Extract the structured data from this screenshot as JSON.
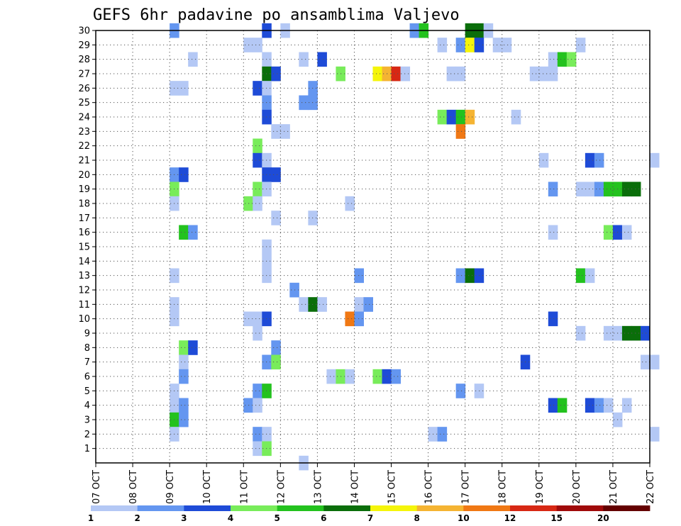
{
  "chart_data": {
    "type": "heatmap",
    "title": "GEFS 6hr padavine po ansamblima Valjevo",
    "x_ticks": [
      "07 OCT",
      "08 OCT",
      "09 OCT",
      "10 OCT",
      "11 OCT",
      "12 OCT",
      "13 OCT",
      "14 OCT",
      "15 OCT",
      "16 OCT",
      "17 OCT",
      "18 OCT",
      "19 OCT",
      "20 OCT",
      "21 OCT",
      "22 OCT"
    ],
    "y_ticks": [
      "1",
      "2",
      "3",
      "4",
      "5",
      "6",
      "7",
      "8",
      "9",
      "10",
      "11",
      "12",
      "13",
      "14",
      "15",
      "16",
      "17",
      "18",
      "19",
      "20",
      "21",
      "22",
      "23",
      "24",
      "25",
      "26",
      "27",
      "28",
      "29",
      "30"
    ],
    "xlim_days": [
      7,
      22
    ],
    "ylim": [
      0,
      30
    ],
    "grid": true,
    "colorbar": {
      "labels": [
        "1",
        "2",
        "3",
        "4",
        "5",
        "6",
        "7",
        "8",
        "10",
        "12",
        "15",
        "20"
      ],
      "colors": [
        "#b4c8f5",
        "#6496f0",
        "#1e4bd7",
        "#78ec5a",
        "#23c21e",
        "#0a6e0a",
        "#f5f50a",
        "#f5b432",
        "#f07814",
        "#d72814",
        "#a00a0a",
        "#640000"
      ]
    },
    "cells": [
      [
        30,
        9.0,
        2
      ],
      [
        30,
        11.5,
        3
      ],
      [
        30,
        12.0,
        1
      ],
      [
        30,
        15.5,
        2
      ],
      [
        30,
        15.75,
        5
      ],
      [
        30,
        17.0,
        6
      ],
      [
        30,
        17.25,
        6
      ],
      [
        30,
        17.5,
        1
      ],
      [
        29,
        11.0,
        1
      ],
      [
        29,
        11.25,
        1
      ],
      [
        29,
        16.25,
        1
      ],
      [
        29,
        16.75,
        2
      ],
      [
        29,
        17.0,
        7
      ],
      [
        29,
        17.25,
        3
      ],
      [
        29,
        17.75,
        1
      ],
      [
        29,
        18.0,
        1
      ],
      [
        29,
        20.0,
        1
      ],
      [
        28,
        9.5,
        1
      ],
      [
        28,
        11.5,
        1
      ],
      [
        28,
        12.5,
        1
      ],
      [
        28,
        13.0,
        3
      ],
      [
        28,
        19.25,
        1
      ],
      [
        28,
        19.5,
        5
      ],
      [
        28,
        19.75,
        4
      ],
      [
        27,
        11.5,
        6
      ],
      [
        27,
        11.75,
        3
      ],
      [
        27,
        13.5,
        4
      ],
      [
        27,
        14.5,
        7
      ],
      [
        27,
        14.75,
        8
      ],
      [
        27,
        15.0,
        10
      ],
      [
        27,
        15.25,
        1
      ],
      [
        27,
        16.5,
        1
      ],
      [
        27,
        16.75,
        1
      ],
      [
        27,
        18.75,
        1
      ],
      [
        27,
        19.0,
        1
      ],
      [
        27,
        19.25,
        1
      ],
      [
        26,
        9.0,
        1
      ],
      [
        26,
        9.25,
        1
      ],
      [
        26,
        11.25,
        3
      ],
      [
        26,
        11.5,
        1
      ],
      [
        26,
        12.75,
        2
      ],
      [
        25,
        11.5,
        2
      ],
      [
        25,
        12.5,
        2
      ],
      [
        25,
        12.75,
        2
      ],
      [
        24,
        11.5,
        3
      ],
      [
        24,
        16.25,
        4
      ],
      [
        24,
        16.5,
        3
      ],
      [
        24,
        16.75,
        5
      ],
      [
        24,
        17.0,
        8
      ],
      [
        24,
        18.25,
        1
      ],
      [
        23,
        11.75,
        1
      ],
      [
        23,
        12.0,
        1
      ],
      [
        23,
        16.75,
        9
      ],
      [
        22,
        11.25,
        4
      ],
      [
        21,
        11.25,
        3
      ],
      [
        21,
        11.5,
        1
      ],
      [
        21,
        19.0,
        1
      ],
      [
        21,
        20.25,
        3
      ],
      [
        21,
        20.5,
        2
      ],
      [
        21,
        22.0,
        1
      ],
      [
        20,
        9.0,
        2
      ],
      [
        20,
        9.25,
        3
      ],
      [
        20,
        11.5,
        3
      ],
      [
        20,
        11.75,
        3
      ],
      [
        19,
        9.0,
        4
      ],
      [
        19,
        11.25,
        4
      ],
      [
        19,
        11.5,
        1
      ],
      [
        19,
        19.25,
        2
      ],
      [
        19,
        20.0,
        1
      ],
      [
        19,
        20.25,
        1
      ],
      [
        19,
        20.5,
        2
      ],
      [
        19,
        20.75,
        5
      ],
      [
        19,
        21.0,
        5
      ],
      [
        19,
        21.25,
        6
      ],
      [
        19,
        21.5,
        6
      ],
      [
        18,
        9.0,
        1
      ],
      [
        18,
        11.0,
        4
      ],
      [
        18,
        11.25,
        1
      ],
      [
        18,
        13.75,
        1
      ],
      [
        17,
        11.75,
        1
      ],
      [
        17,
        12.75,
        1
      ],
      [
        16,
        9.25,
        5
      ],
      [
        16,
        9.5,
        2
      ],
      [
        16,
        19.25,
        1
      ],
      [
        16,
        20.75,
        4
      ],
      [
        16,
        21.0,
        3
      ],
      [
        16,
        21.25,
        1
      ],
      [
        15,
        11.5,
        1
      ],
      [
        14,
        11.5,
        1
      ],
      [
        13,
        9.0,
        1
      ],
      [
        13,
        11.5,
        1
      ],
      [
        13,
        14.0,
        2
      ],
      [
        13,
        16.75,
        2
      ],
      [
        13,
        17.0,
        6
      ],
      [
        13,
        17.25,
        3
      ],
      [
        13,
        20.0,
        5
      ],
      [
        13,
        20.25,
        1
      ],
      [
        12,
        12.25,
        2
      ],
      [
        11,
        9.0,
        1
      ],
      [
        11,
        12.5,
        1
      ],
      [
        11,
        12.75,
        6
      ],
      [
        11,
        13.0,
        1
      ],
      [
        11,
        14.0,
        1
      ],
      [
        11,
        14.25,
        2
      ],
      [
        10,
        9.0,
        1
      ],
      [
        10,
        11.0,
        1
      ],
      [
        10,
        11.25,
        1
      ],
      [
        10,
        11.5,
        3
      ],
      [
        10,
        13.75,
        9
      ],
      [
        10,
        14.0,
        2
      ],
      [
        10,
        19.25,
        3
      ],
      [
        9,
        11.25,
        1
      ],
      [
        9,
        20.0,
        1
      ],
      [
        9,
        20.75,
        1
      ],
      [
        9,
        21.0,
        1
      ],
      [
        9,
        21.25,
        6
      ],
      [
        9,
        21.5,
        6
      ],
      [
        9,
        21.75,
        3
      ],
      [
        8,
        9.25,
        4
      ],
      [
        8,
        9.5,
        3
      ],
      [
        8,
        11.75,
        2
      ],
      [
        7,
        9.25,
        1
      ],
      [
        7,
        11.5,
        2
      ],
      [
        7,
        11.75,
        4
      ],
      [
        7,
        18.5,
        3
      ],
      [
        7,
        21.75,
        1
      ],
      [
        7,
        22.0,
        1
      ],
      [
        6,
        9.25,
        2
      ],
      [
        6,
        13.25,
        1
      ],
      [
        6,
        13.5,
        4
      ],
      [
        6,
        13.75,
        1
      ],
      [
        6,
        14.5,
        4
      ],
      [
        6,
        14.75,
        3
      ],
      [
        6,
        15.0,
        2
      ],
      [
        5,
        9.0,
        1
      ],
      [
        5,
        11.25,
        2
      ],
      [
        5,
        11.5,
        5
      ],
      [
        5,
        16.75,
        2
      ],
      [
        5,
        17.25,
        1
      ],
      [
        4,
        9.0,
        1
      ],
      [
        4,
        9.25,
        2
      ],
      [
        4,
        11.0,
        2
      ],
      [
        4,
        11.25,
        1
      ],
      [
        4,
        19.25,
        3
      ],
      [
        4,
        19.5,
        5
      ],
      [
        4,
        20.25,
        3
      ],
      [
        4,
        20.5,
        2
      ],
      [
        4,
        20.75,
        1
      ],
      [
        4,
        21.25,
        1
      ],
      [
        3,
        9.0,
        5
      ],
      [
        3,
        9.25,
        2
      ],
      [
        3,
        21.0,
        1
      ],
      [
        2,
        9.0,
        1
      ],
      [
        2,
        11.25,
        2
      ],
      [
        2,
        11.5,
        1
      ],
      [
        2,
        16.0,
        1
      ],
      [
        2,
        16.25,
        2
      ],
      [
        2,
        22.0,
        1
      ],
      [
        1,
        11.25,
        1
      ],
      [
        1,
        11.5,
        4
      ],
      [
        0,
        12.5,
        1
      ]
    ]
  }
}
